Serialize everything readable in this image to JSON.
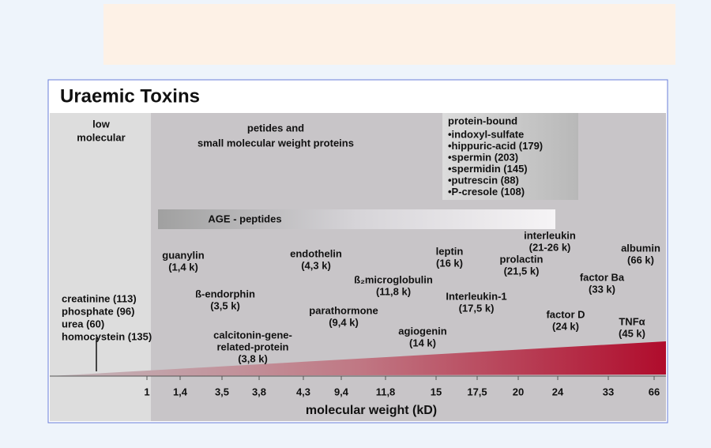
{
  "title": "Uraemic Toxins",
  "regions": {
    "low_molecular": [
      "low",
      "molecular"
    ],
    "peptides": [
      "petides and",
      "small molecular weight proteins"
    ],
    "protein_bound": {
      "heading": "protein-bound",
      "items": [
        "•indoxyl-sulfate",
        "•hippuric-acid (179)",
        "•spermin (203)",
        "•spermidin (145)",
        "•putrescin (88)",
        "•P-cresole (108)"
      ]
    },
    "age": "AGE - peptides"
  },
  "small_molecules": [
    "creatinine (113)",
    "phosphate (96)",
    "urea (60)",
    "homocystein (135)"
  ],
  "toxins": [
    [
      "guanylin",
      "(1,4 k)"
    ],
    [
      "ß-endorphin",
      "(3,5 k)"
    ],
    [
      "calcitonin-gene-",
      "related-protein",
      "(3,8 k)"
    ],
    [
      "endothelin",
      "(4,3 k)"
    ],
    [
      "ß₂microglobulin",
      "(11,8 k)"
    ],
    [
      "parathormone",
      "(9,4 k)"
    ],
    [
      "agiogenin",
      "(14 k)"
    ],
    [
      "leptin",
      "(16 k)"
    ],
    [
      "Interleukin-1",
      "(17,5 k)"
    ],
    [
      "interleukin",
      "(21-26 k)"
    ],
    [
      "prolactin",
      "(21,5 k)"
    ],
    [
      "albumin",
      "(66 k)"
    ],
    [
      "factor Ba",
      "(33 k)"
    ],
    [
      "factor D",
      "(24 k)"
    ],
    [
      "TNFα",
      "(45 k)"
    ]
  ],
  "axis": {
    "ticks": [
      "1",
      "1,4",
      "3,5",
      "3,8",
      "4,3",
      "9,4",
      "11,8",
      "15",
      "17,5",
      "20",
      "24",
      "33",
      "66"
    ],
    "title": "molecular weight (kD)"
  }
}
